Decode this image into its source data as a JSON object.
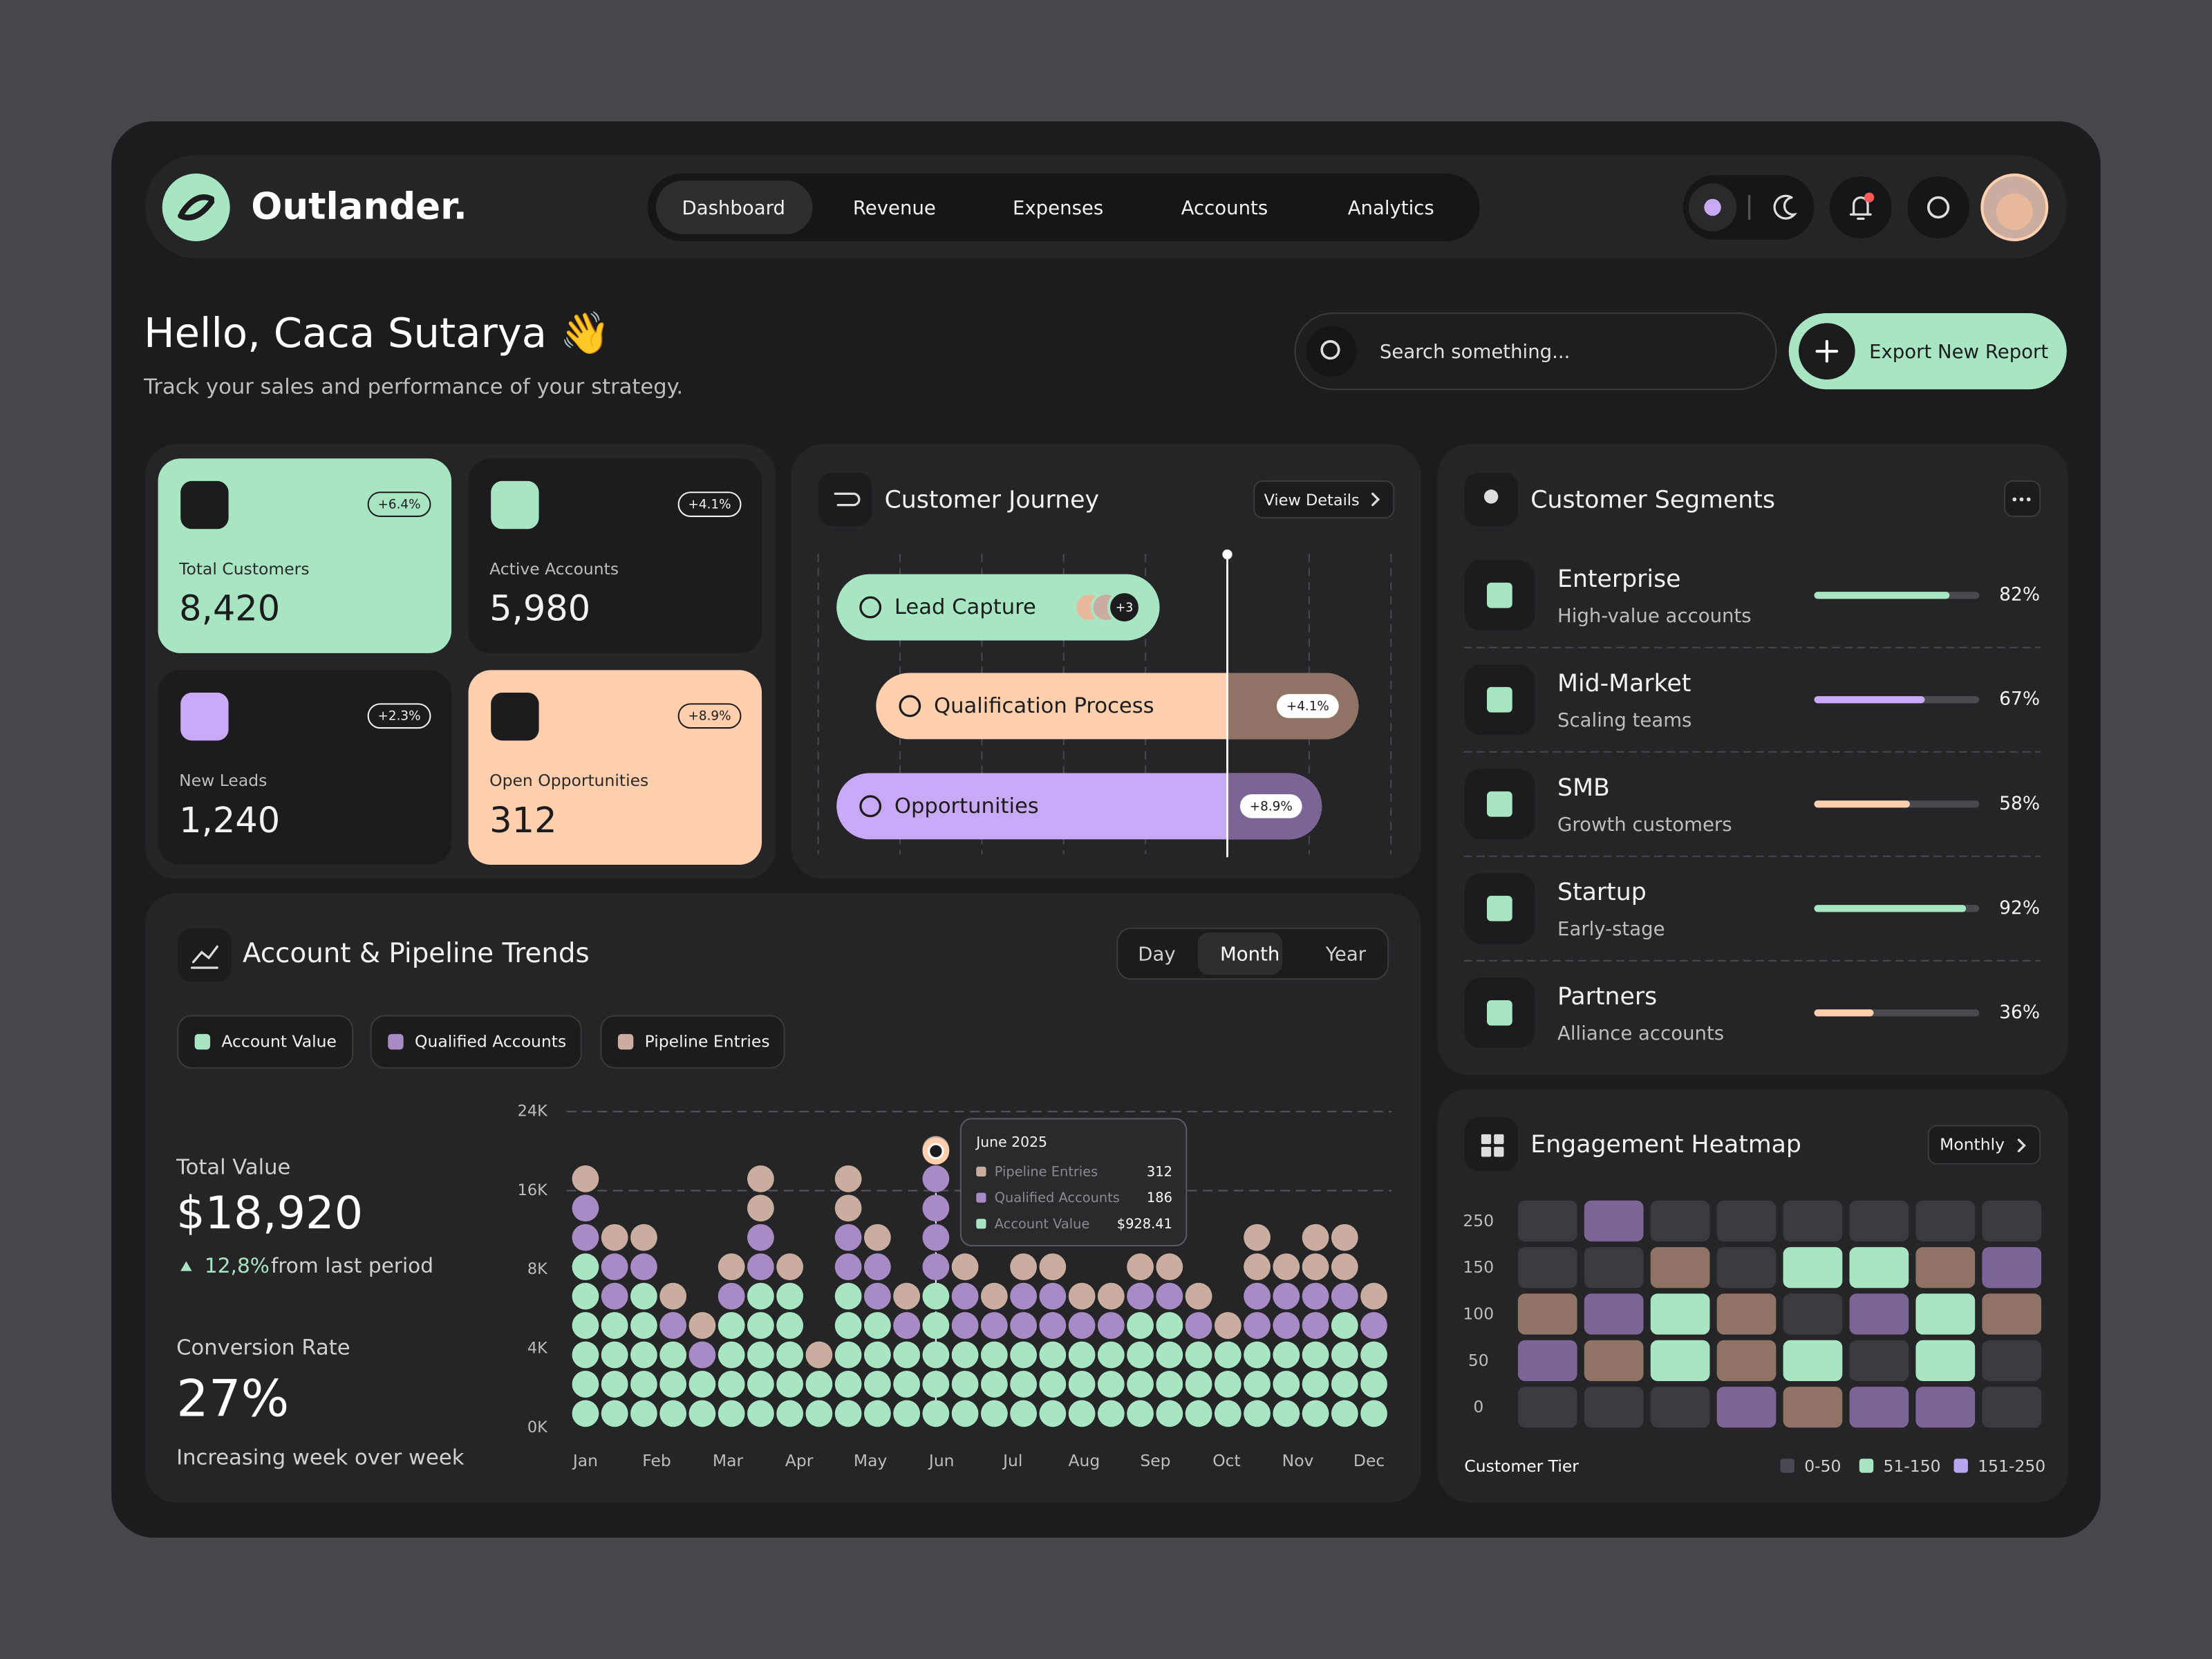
{
  "brand": "Outlander.",
  "nav": [
    "Dashboard",
    "Revenue",
    "Expenses",
    "Accounts",
    "Analytics"
  ],
  "greeting": {
    "title": "Hello, Caca Sutarya 👋",
    "subtitle": "Track your sales and performance of your strategy."
  },
  "search_placeholder": "Search something...",
  "export_button": "Export New Report",
  "kpis": [
    {
      "label": "Total Customers",
      "value": "8,420",
      "change": "+6.4%",
      "color": "#a8e6c3"
    },
    {
      "label": "Active Accounts",
      "value": "5,980",
      "change": "+4.1%",
      "color": "#1c1c1e"
    },
    {
      "label": "New Leads",
      "value": "1,240",
      "change": "+2.3%",
      "color": "#1c1c1e"
    },
    {
      "label": "Open Opportunities",
      "value": "312",
      "change": "+8.9%",
      "color": "#ffcfae"
    }
  ],
  "journey": {
    "title": "Customer Journey",
    "action": "View Details",
    "stages": [
      {
        "label": "Lead Capture",
        "badge": "+3"
      },
      {
        "label": "Qualification Process",
        "change": "+4.1%"
      },
      {
        "label": "Opportunities",
        "change": "+8.9%"
      }
    ]
  },
  "segments": {
    "title": "Customer Segments",
    "items": [
      {
        "name": "Enterprise",
        "description": "High-value accounts",
        "value": 82,
        "label": "82%",
        "color": "#a8e6c3"
      },
      {
        "name": "Mid-Market",
        "description": "Scaling teams",
        "value": 67,
        "label": "67%",
        "color": "#c9a8f5"
      },
      {
        "name": "SMB",
        "description": "Growth customers",
        "value": 58,
        "label": "58%",
        "color": "#ffcfae"
      },
      {
        "name": "Startup",
        "description": "Early-stage",
        "value": 92,
        "label": "92%",
        "color": "#a8e6c3"
      },
      {
        "name": "Partners",
        "description": "Alliance accounts",
        "value": 36,
        "label": "36%",
        "color": "#ffcfae"
      }
    ]
  },
  "trends": {
    "title": "Account & Pipeline Trends",
    "ranges": [
      "Day",
      "Month",
      "Year"
    ],
    "legend": [
      {
        "label": "Account Value",
        "color": "#a8e6c3"
      },
      {
        "label": "Qualified Accounts",
        "color": "#a88bc4"
      },
      {
        "label": "Pipeline Entries",
        "color": "#c9ad9e"
      }
    ],
    "total_value": {
      "label": "Total Value",
      "value": "$18,920",
      "change": "12,8%",
      "change_text": "from last period"
    },
    "conversion": {
      "label": "Conversion Rate",
      "value": "27%",
      "note": "Increasing week over week"
    },
    "y_labels": [
      "24K",
      "16K",
      "8K",
      "4K",
      "0K"
    ],
    "months": [
      "Jan",
      "Feb",
      "Mar",
      "Apr",
      "May",
      "Jun",
      "Jul",
      "Aug",
      "Sep",
      "Oct",
      "Nov",
      "Dec"
    ],
    "columns": [
      [
        6,
        2,
        1
      ],
      [
        4,
        2,
        1
      ],
      [
        5,
        1,
        1
      ],
      [
        3,
        1,
        1
      ],
      [
        2,
        1,
        1
      ],
      [
        4,
        1,
        1
      ],
      [
        5,
        2,
        2
      ],
      [
        5,
        0,
        1
      ],
      [
        2,
        0,
        1
      ],
      [
        5,
        2,
        2
      ],
      [
        4,
        2,
        1
      ],
      [
        3,
        1,
        1
      ],
      [
        5,
        4,
        1
      ],
      [
        3,
        2,
        1
      ],
      [
        3,
        1,
        1
      ],
      [
        3,
        2,
        1
      ],
      [
        3,
        2,
        1
      ],
      [
        3,
        1,
        1
      ],
      [
        3,
        1,
        1
      ],
      [
        4,
        1,
        1
      ],
      [
        4,
        1,
        1
      ],
      [
        3,
        1,
        1
      ],
      [
        3,
        0,
        1
      ],
      [
        3,
        2,
        2
      ],
      [
        3,
        2,
        1
      ],
      [
        3,
        2,
        2
      ],
      [
        4,
        1,
        2
      ],
      [
        3,
        1,
        1
      ]
    ],
    "tooltip": {
      "title": "June 2025",
      "rows": [
        {
          "label": "Pipeline Entries",
          "value": "312"
        },
        {
          "label": "Qualified Accounts",
          "value": "186"
        },
        {
          "label": "Account Value",
          "value": "$928.41"
        }
      ]
    }
  },
  "heatmap": {
    "title": "Engagement Heatmap",
    "period": "Monthly",
    "row_labels": [
      "250",
      "150",
      "100",
      "50",
      "0"
    ],
    "cells": [
      [
        "#3a3b3f",
        "#7b6596",
        "#3a3b3f",
        "#3a3b3f",
        "#3a3b3f",
        "#3a3b3f",
        "#3a3b3f",
        "#3a3b3f"
      ],
      [
        "#3a3b3f",
        "#3a3b3f",
        "#8f7466",
        "#3a3b3f",
        "#a8e6c3",
        "#a8e6c3",
        "#8f7466",
        "#7b6596"
      ],
      [
        "#8f7466",
        "#7b6596",
        "#a8e6c3",
        "#8f7466",
        "#3a3b3f",
        "#7b6596",
        "#a8e6c3",
        "#8f7466"
      ],
      [
        "#7b6596",
        "#8f7466",
        "#a8e6c3",
        "#8f7466",
        "#a8e6c3",
        "#3a3b3f",
        "#a8e6c3",
        "#3a3b3f"
      ],
      [
        "#3a3b3f",
        "#3a3b3f",
        "#3a3b3f",
        "#7b6596",
        "#8f7466",
        "#7b6596",
        "#7b6596",
        "#3a3b3f"
      ]
    ],
    "axis_label": "Customer Tier",
    "legend": [
      {
        "label": "0-50",
        "color": "#4a4a55"
      },
      {
        "label": "51-150",
        "color": "#a8e6c3"
      },
      {
        "label": "151-250",
        "color": "#b9a6f0"
      }
    ]
  }
}
